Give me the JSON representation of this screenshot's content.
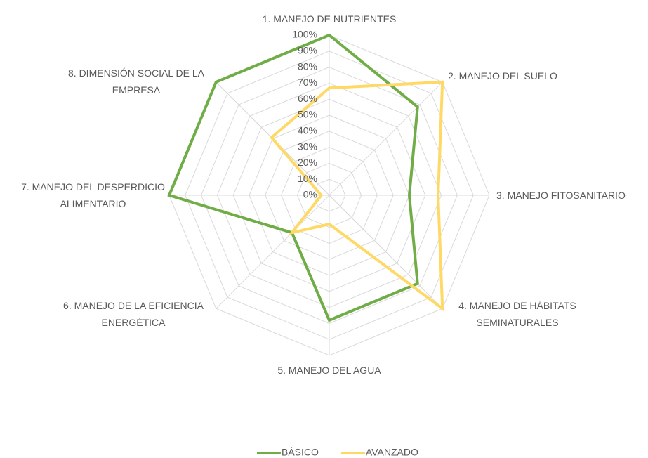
{
  "chart_data": {
    "type": "radar",
    "categories": [
      "1. MANEJO DE NUTRIENTES",
      "2. MANEJO DEL SUELO",
      "3. MANEJO FITOSANITARIO",
      "4. MANEJO DE HÁBITATS SEMINATURALES",
      "5. MANEJO DEL AGUA",
      "6. MANEJO DE LA EFICIENCIA ENERGÉTICA",
      "7. MANEJO DEL DESPERDICIO ALIMENTARIO",
      "8. DIMENSIÓN SOCIAL DE LA EMPRESA"
    ],
    "series": [
      {
        "name": "BÁSICO",
        "color": "#70ad47",
        "values": [
          100,
          78,
          50,
          78,
          78,
          33,
          100,
          100
        ]
      },
      {
        "name": "AVANZADO",
        "color": "#ffd966",
        "values": [
          67,
          100,
          68,
          100,
          18,
          33,
          5,
          51
        ]
      }
    ],
    "ylim": [
      0,
      100
    ],
    "yticks": [
      {
        "value": 0,
        "label": "0%"
      },
      {
        "value": 10,
        "label": "10%"
      },
      {
        "value": 20,
        "label": "20%"
      },
      {
        "value": 30,
        "label": "30%"
      },
      {
        "value": 40,
        "label": "40%"
      },
      {
        "value": 50,
        "label": "50%"
      },
      {
        "value": 60,
        "label": "60%"
      },
      {
        "value": 70,
        "label": "70%"
      },
      {
        "value": 80,
        "label": "80%"
      },
      {
        "value": 90,
        "label": "90%"
      },
      {
        "value": 100,
        "label": "100%"
      }
    ],
    "grid": true,
    "legend": "bottom"
  }
}
